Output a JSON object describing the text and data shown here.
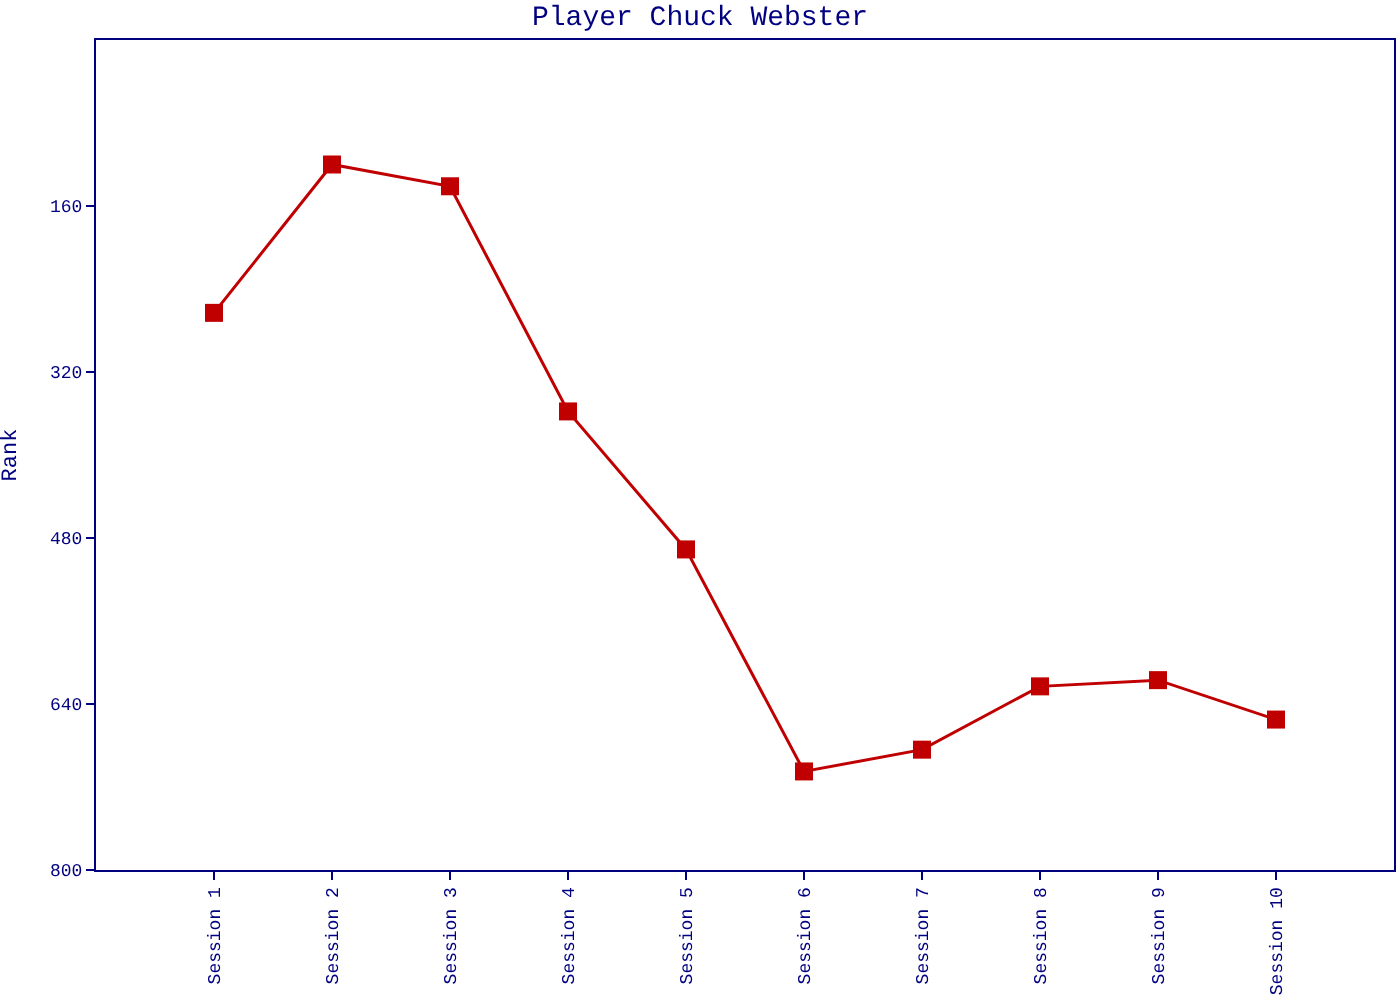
{
  "chart_data": {
    "type": "line",
    "title": "Player Chuck Webster",
    "ylabel": "Rank",
    "categories": [
      "Session 1",
      "Session 2",
      "Session 3",
      "Session 4",
      "Session 5",
      "Session 6",
      "Session 7",
      "Session 8",
      "Session 9",
      "Session 10"
    ],
    "series": [
      {
        "color": "#c00000",
        "values": [
          263,
          120,
          141,
          358,
          491,
          705,
          684,
          623,
          617,
          655
        ]
      }
    ],
    "ylim": [
      800,
      0
    ],
    "yticks": [
      160,
      320,
      480,
      640,
      800
    ],
    "legend": false,
    "marker": "square",
    "line_style": "solid"
  }
}
